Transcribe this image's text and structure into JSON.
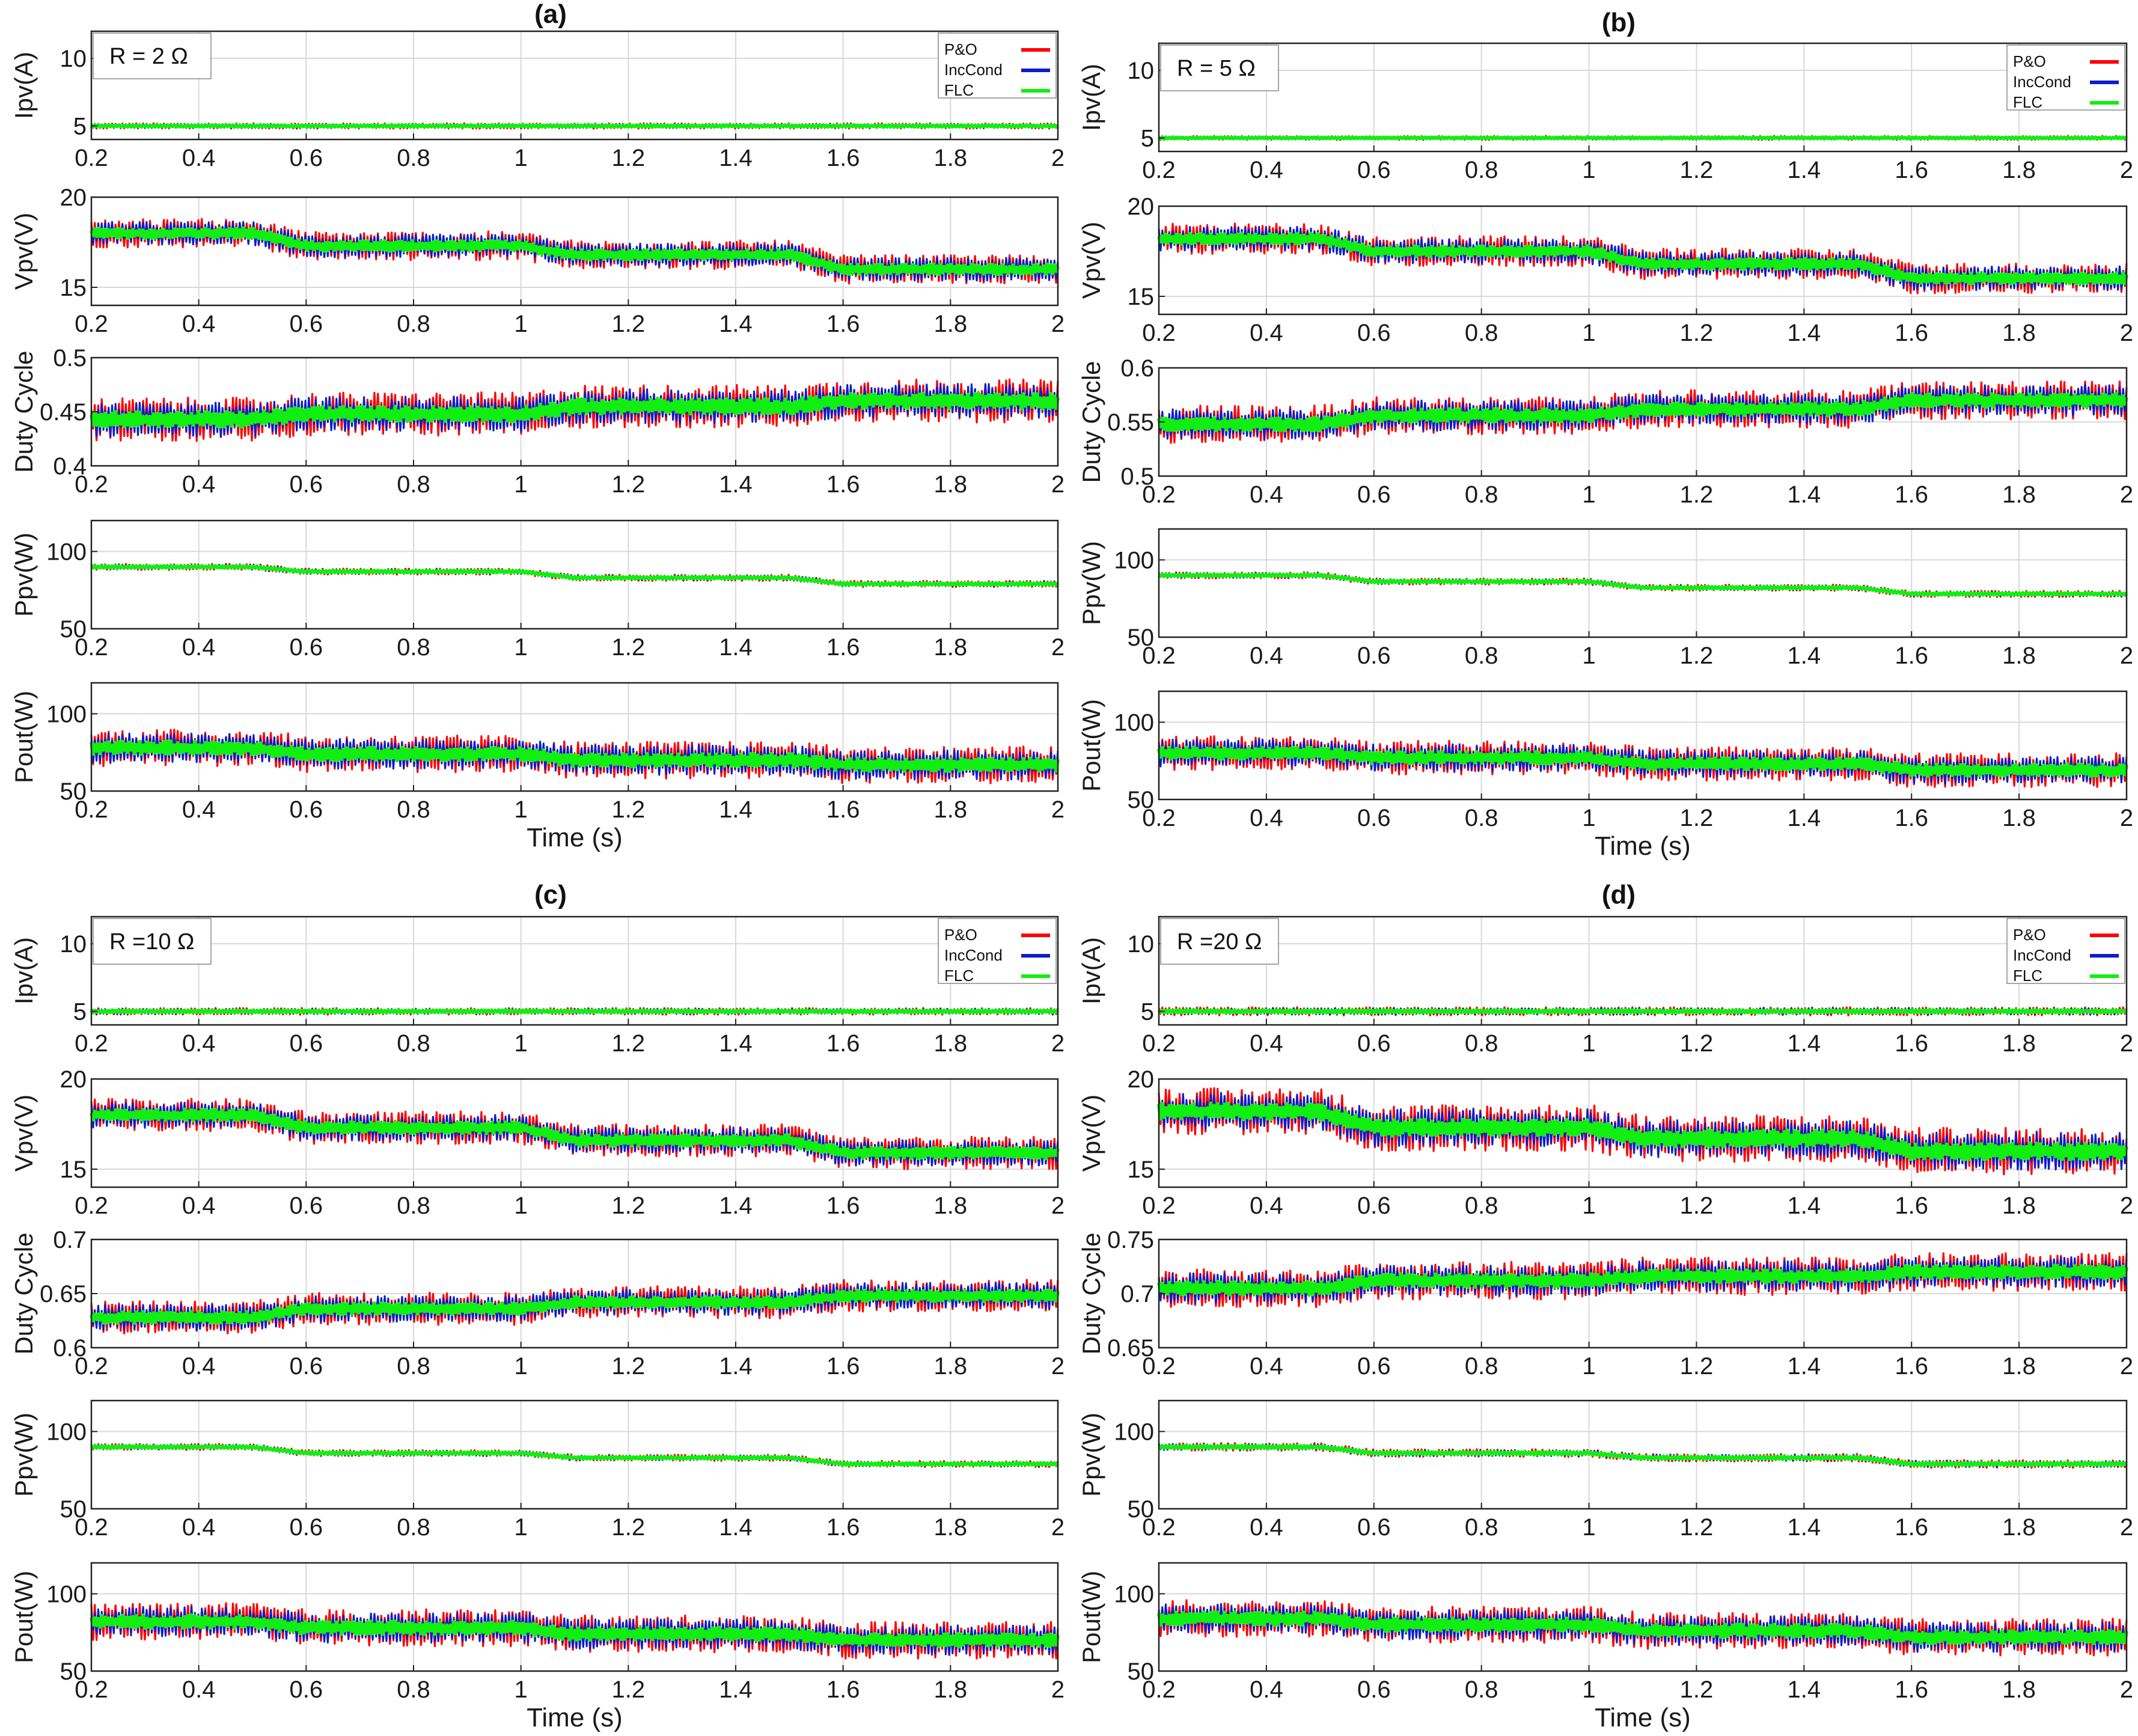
{
  "colors": {
    "po": "#ff0000",
    "inc": "#0a1ecc",
    "flc": "#11ee11",
    "grid": "#d9d9d9",
    "axis": "#222222"
  },
  "legend_labels": [
    "P&O",
    "IncCond",
    "FLC"
  ],
  "x_axis": {
    "label": "Time (s)",
    "range": [
      0.2,
      2
    ],
    "ticks": [
      "0.2",
      "0.4",
      "0.6",
      "0.8",
      "1",
      "1.2",
      "1.4",
      "1.6",
      "1.8",
      "2"
    ]
  },
  "chart_data": [
    {
      "id": "a",
      "type": "line",
      "title": "(a)",
      "resistance": "R = 2 Ω",
      "subplots": [
        {
          "ylabel": "Ipv(A)",
          "ylim": [
            4,
            12
          ],
          "yticks": [
            "5",
            "10"
          ],
          "mean": [
            5,
            5,
            5,
            5
          ],
          "spread": 0.4
        },
        {
          "ylabel": "Vpv(V)",
          "ylim": [
            14,
            20
          ],
          "yticks": [
            "15",
            "20"
          ],
          "mean": [
            18,
            17.3,
            16.8,
            16
          ],
          "spread": 1.6
        },
        {
          "ylabel": "Duty Cycle",
          "ylim": [
            0.4,
            0.5
          ],
          "yticks": [
            "0.4",
            "0.45",
            "0.5"
          ],
          "mean": [
            0.443,
            0.448,
            0.455,
            0.46
          ],
          "spread": 0.04
        },
        {
          "ylabel": "Ppv(W)",
          "ylim": [
            50,
            120
          ],
          "yticks": [
            "50",
            "100"
          ],
          "mean": [
            90,
            87,
            83,
            79
          ],
          "spread": 4
        },
        {
          "ylabel": "Pout(W)",
          "ylim": [
            50,
            120
          ],
          "yticks": [
            "50",
            "100"
          ],
          "mean": [
            78,
            74,
            70,
            67
          ],
          "spread": 24
        }
      ]
    },
    {
      "id": "b",
      "type": "line",
      "title": "(b)",
      "resistance": "R = 5 Ω",
      "subplots": [
        {
          "ylabel": "Ipv(A)",
          "ylim": [
            4,
            12
          ],
          "yticks": [
            "5",
            "10"
          ],
          "mean": [
            5,
            5,
            5,
            5
          ],
          "spread": 0.3
        },
        {
          "ylabel": "Vpv(V)",
          "ylim": [
            14,
            20
          ],
          "yticks": [
            "15",
            "20"
          ],
          "mean": [
            18.2,
            17.5,
            16.8,
            16
          ],
          "spread": 1.7
        },
        {
          "ylabel": "Duty Cycle",
          "ylim": [
            0.5,
            0.6
          ],
          "yticks": [
            "0.5",
            "0.55",
            "0.6"
          ],
          "mean": [
            0.548,
            0.556,
            0.562,
            0.57
          ],
          "spread": 0.035
        },
        {
          "ylabel": "Ppv(W)",
          "ylim": [
            50,
            120
          ],
          "yticks": [
            "50",
            "100"
          ],
          "mean": [
            90,
            86,
            82,
            78
          ],
          "spread": 4
        },
        {
          "ylabel": "Pout(W)",
          "ylim": [
            50,
            120
          ],
          "yticks": [
            "50",
            "100"
          ],
          "mean": [
            80,
            77,
            73,
            69
          ],
          "spread": 22
        }
      ]
    },
    {
      "id": "c",
      "type": "line",
      "title": "(c)",
      "resistance": "R =10 Ω",
      "subplots": [
        {
          "ylabel": "Ipv(A)",
          "ylim": [
            4,
            12
          ],
          "yticks": [
            "5",
            "10"
          ],
          "mean": [
            5,
            5,
            5,
            5
          ],
          "spread": 0.5
        },
        {
          "ylabel": "Vpv(V)",
          "ylim": [
            14,
            20
          ],
          "yticks": [
            "15",
            "20"
          ],
          "mean": [
            18,
            17.3,
            16.6,
            15.9
          ],
          "spread": 1.8
        },
        {
          "ylabel": "Duty Cycle",
          "ylim": [
            0.6,
            0.7
          ],
          "yticks": [
            "0.6",
            "0.65",
            "0.7"
          ],
          "mean": [
            0.628,
            0.636,
            0.642,
            0.648
          ],
          "spread": 0.03
        },
        {
          "ylabel": "Ppv(W)",
          "ylim": [
            50,
            120
          ],
          "yticks": [
            "50",
            "100"
          ],
          "mean": [
            90,
            86,
            83,
            79
          ],
          "spread": 4
        },
        {
          "ylabel": "Pout(W)",
          "ylim": [
            50,
            120
          ],
          "yticks": [
            "50",
            "100"
          ],
          "mean": [
            82,
            78,
            74,
            70
          ],
          "spread": 24
        }
      ]
    },
    {
      "id": "d",
      "type": "line",
      "title": "(d)",
      "resistance": "R =20 Ω",
      "subplots": [
        {
          "ylabel": "Ipv(A)",
          "ylim": [
            4,
            12
          ],
          "yticks": [
            "5",
            "10"
          ],
          "mean": [
            5,
            5,
            5,
            5
          ],
          "spread": 0.6
        },
        {
          "ylabel": "Vpv(V)",
          "ylim": [
            14,
            20
          ],
          "yticks": [
            "15",
            "20"
          ],
          "mean": [
            18.2,
            17.3,
            16.7,
            16
          ],
          "spread": 2.6
        },
        {
          "ylabel": "Duty Cycle",
          "ylim": [
            0.65,
            0.75
          ],
          "yticks": [
            "0.65",
            "0.7",
            "0.75"
          ],
          "mean": [
            0.705,
            0.712,
            0.716,
            0.72
          ],
          "spread": 0.035
        },
        {
          "ylabel": "Ppv(W)",
          "ylim": [
            50,
            120
          ],
          "yticks": [
            "50",
            "100"
          ],
          "mean": [
            90,
            86,
            83,
            79
          ],
          "spread": 5
        },
        {
          "ylabel": "Pout(W)",
          "ylim": [
            50,
            120
          ],
          "yticks": [
            "50",
            "100"
          ],
          "mean": [
            84,
            80,
            76,
            72
          ],
          "spread": 24
        }
      ]
    }
  ]
}
